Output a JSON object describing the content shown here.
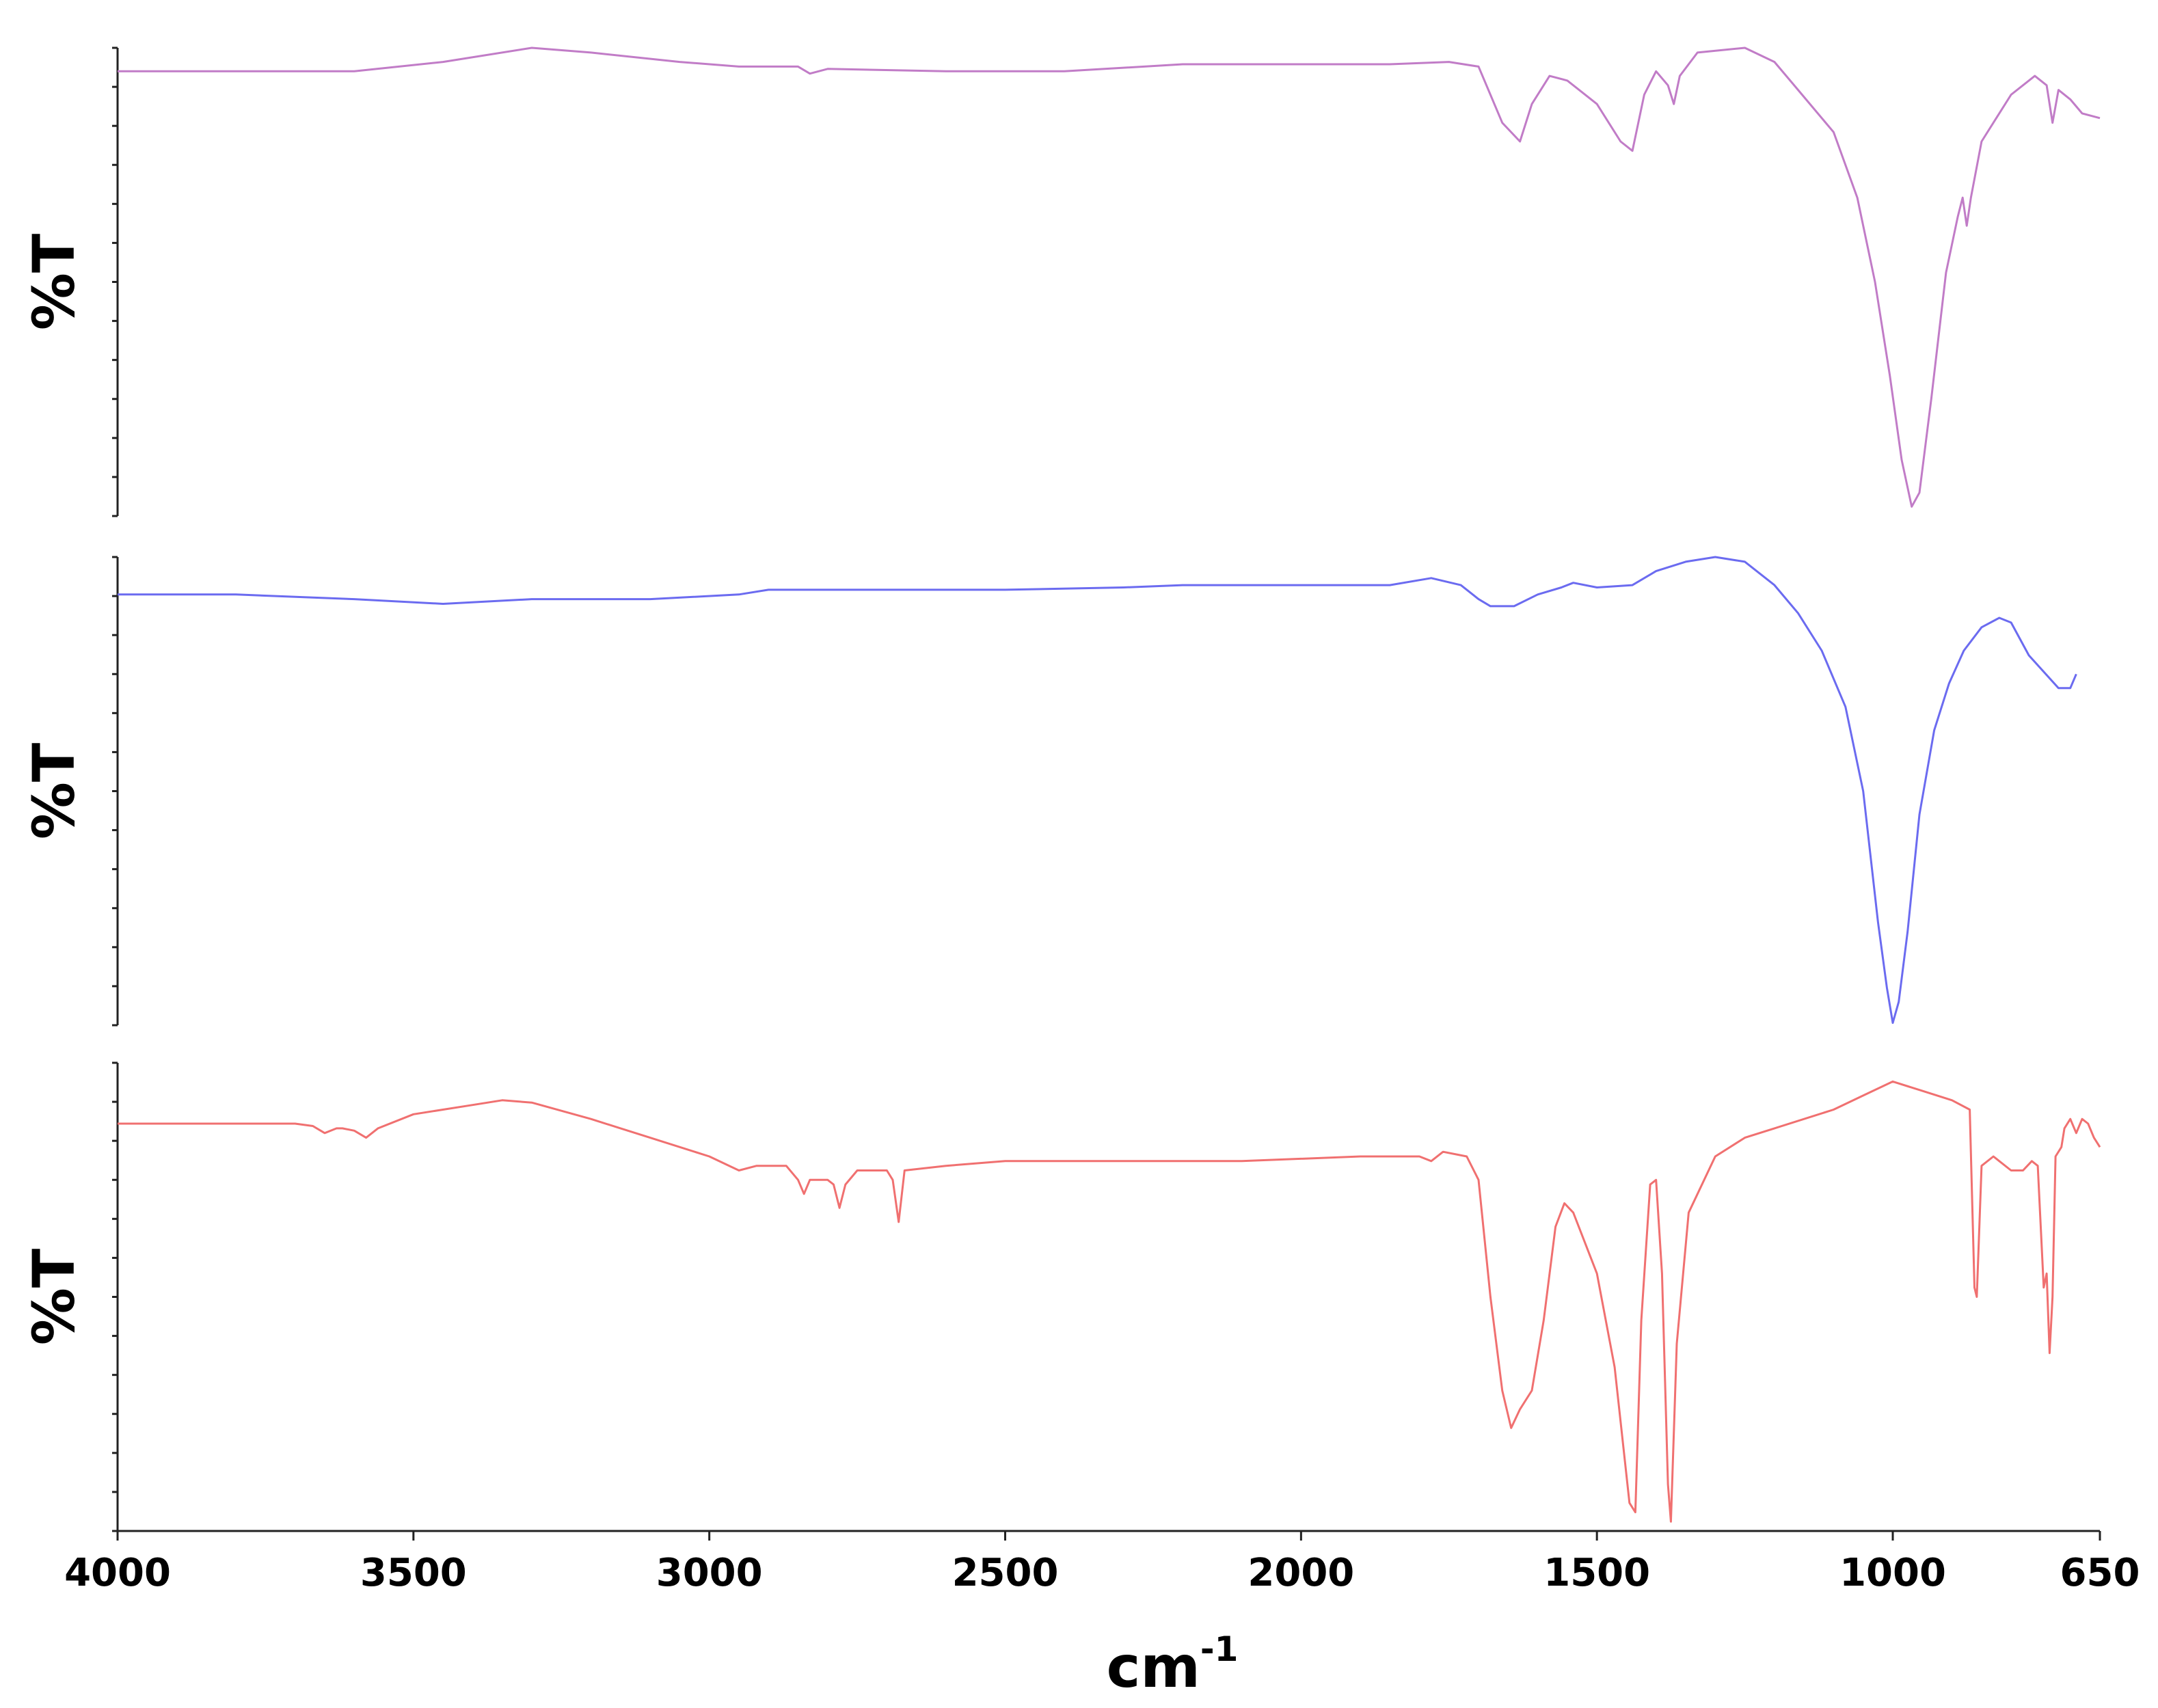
{
  "chart_data": {
    "type": "line",
    "stacked_panels": 3,
    "xlabel": "cm",
    "xlabel_sup": "-1",
    "ylabel": "%T",
    "xlim": [
      4000,
      650
    ],
    "x_reversed": true,
    "xticks": [
      "4000",
      "3500",
      "3000",
      "2500",
      "2000",
      "1500",
      "1000",
      "650"
    ],
    "grid": false,
    "series": [
      {
        "color": "#c17cc7",
        "ylim": [
          0,
          100
        ],
        "points": [
          [
            4000,
            95
          ],
          [
            3800,
            95
          ],
          [
            3600,
            95
          ],
          [
            3450,
            97
          ],
          [
            3300,
            100
          ],
          [
            3200,
            99
          ],
          [
            3050,
            97
          ],
          [
            2950,
            96
          ],
          [
            2850,
            96
          ],
          [
            2830,
            94.5
          ],
          [
            2800,
            95.5
          ],
          [
            2600,
            95
          ],
          [
            2400,
            95
          ],
          [
            2200,
            96.5
          ],
          [
            2000,
            96.5
          ],
          [
            1850,
            96.5
          ],
          [
            1750,
            97
          ],
          [
            1700,
            96
          ],
          [
            1660,
            84
          ],
          [
            1630,
            80
          ],
          [
            1610,
            88
          ],
          [
            1580,
            94
          ],
          [
            1550,
            93
          ],
          [
            1500,
            88
          ],
          [
            1460,
            80
          ],
          [
            1440,
            78
          ],
          [
            1420,
            90
          ],
          [
            1400,
            95
          ],
          [
            1380,
            92
          ],
          [
            1370,
            88
          ],
          [
            1360,
            94
          ],
          [
            1330,
            99
          ],
          [
            1250,
            100
          ],
          [
            1200,
            97
          ],
          [
            1160,
            91
          ],
          [
            1100,
            82
          ],
          [
            1060,
            68
          ],
          [
            1030,
            50
          ],
          [
            1005,
            30
          ],
          [
            985,
            12
          ],
          [
            968,
            2
          ],
          [
            955,
            5
          ],
          [
            935,
            25
          ],
          [
            910,
            52
          ],
          [
            890,
            64
          ],
          [
            882,
            68
          ],
          [
            875,
            62
          ],
          [
            868,
            68
          ],
          [
            850,
            80
          ],
          [
            800,
            90
          ],
          [
            760,
            94
          ],
          [
            740,
            92
          ],
          [
            730,
            84
          ],
          [
            720,
            91
          ],
          [
            700,
            89
          ],
          [
            680,
            86
          ],
          [
            650,
            85
          ]
        ]
      },
      {
        "color": "#6b6bf0",
        "ylim": [
          0,
          100
        ],
        "points": [
          [
            4000,
            92
          ],
          [
            3800,
            92
          ],
          [
            3600,
            91
          ],
          [
            3450,
            90
          ],
          [
            3300,
            91
          ],
          [
            3100,
            91
          ],
          [
            2950,
            92
          ],
          [
            2900,
            93
          ],
          [
            2700,
            93
          ],
          [
            2500,
            93
          ],
          [
            2300,
            93.5
          ],
          [
            2200,
            94
          ],
          [
            2000,
            94
          ],
          [
            1850,
            94
          ],
          [
            1780,
            95.5
          ],
          [
            1730,
            94
          ],
          [
            1700,
            91
          ],
          [
            1680,
            89.5
          ],
          [
            1640,
            89.5
          ],
          [
            1600,
            92
          ],
          [
            1560,
            93.5
          ],
          [
            1540,
            94.5
          ],
          [
            1500,
            93.5
          ],
          [
            1440,
            94
          ],
          [
            1400,
            97
          ],
          [
            1350,
            99
          ],
          [
            1300,
            100
          ],
          [
            1250,
            99
          ],
          [
            1200,
            94
          ],
          [
            1160,
            88
          ],
          [
            1120,
            80
          ],
          [
            1080,
            68
          ],
          [
            1050,
            50
          ],
          [
            1025,
            22
          ],
          [
            1010,
            8
          ],
          [
            1000,
            0.5
          ],
          [
            990,
            5
          ],
          [
            975,
            20
          ],
          [
            955,
            45
          ],
          [
            930,
            63
          ],
          [
            905,
            73
          ],
          [
            880,
            80
          ],
          [
            850,
            85
          ],
          [
            820,
            87
          ],
          [
            800,
            86
          ],
          [
            770,
            79
          ],
          [
            720,
            72
          ],
          [
            700,
            72
          ],
          [
            690,
            75
          ]
        ]
      },
      {
        "color": "#f07070",
        "ylim": [
          0,
          100
        ],
        "points": [
          [
            4000,
            87
          ],
          [
            3800,
            87
          ],
          [
            3700,
            87
          ],
          [
            3670,
            86.5
          ],
          [
            3650,
            85
          ],
          [
            3630,
            86
          ],
          [
            3620,
            86
          ],
          [
            3600,
            85.5
          ],
          [
            3580,
            84
          ],
          [
            3560,
            86
          ],
          [
            3500,
            89
          ],
          [
            3400,
            91
          ],
          [
            3350,
            92
          ],
          [
            3300,
            91.5
          ],
          [
            3200,
            88
          ],
          [
            3100,
            84
          ],
          [
            3000,
            80
          ],
          [
            2950,
            77
          ],
          [
            2920,
            78
          ],
          [
            2870,
            78
          ],
          [
            2850,
            75
          ],
          [
            2840,
            72
          ],
          [
            2830,
            75
          ],
          [
            2800,
            75
          ],
          [
            2790,
            74
          ],
          [
            2780,
            69
          ],
          [
            2770,
            74
          ],
          [
            2750,
            77
          ],
          [
            2700,
            77
          ],
          [
            2690,
            75
          ],
          [
            2680,
            66
          ],
          [
            2670,
            77
          ],
          [
            2600,
            78
          ],
          [
            2500,
            79
          ],
          [
            2300,
            79
          ],
          [
            2100,
            79
          ],
          [
            1900,
            80
          ],
          [
            1800,
            80
          ],
          [
            1780,
            79
          ],
          [
            1760,
            81
          ],
          [
            1720,
            80
          ],
          [
            1700,
            75
          ],
          [
            1680,
            50
          ],
          [
            1660,
            30
          ],
          [
            1645,
            22
          ],
          [
            1630,
            26
          ],
          [
            1610,
            30
          ],
          [
            1590,
            45
          ],
          [
            1570,
            65
          ],
          [
            1555,
            70
          ],
          [
            1540,
            68
          ],
          [
            1500,
            55
          ],
          [
            1470,
            35
          ],
          [
            1445,
            6
          ],
          [
            1435,
            4
          ],
          [
            1425,
            45
          ],
          [
            1410,
            74
          ],
          [
            1400,
            75
          ],
          [
            1390,
            55
          ],
          [
            1380,
            10
          ],
          [
            1375,
            2
          ],
          [
            1365,
            40
          ],
          [
            1345,
            68
          ],
          [
            1300,
            80
          ],
          [
            1250,
            84
          ],
          [
            1200,
            86
          ],
          [
            1100,
            90
          ],
          [
            1050,
            93
          ],
          [
            1000,
            96
          ],
          [
            950,
            94
          ],
          [
            900,
            92
          ],
          [
            870,
            90
          ],
          [
            862,
            52
          ],
          [
            858,
            50
          ],
          [
            850,
            78
          ],
          [
            830,
            80
          ],
          [
            800,
            77
          ],
          [
            780,
            77
          ],
          [
            765,
            79
          ],
          [
            755,
            78
          ],
          [
            745,
            52
          ],
          [
            740,
            55
          ],
          [
            735,
            38
          ],
          [
            730,
            50
          ],
          [
            725,
            80
          ],
          [
            715,
            82
          ],
          [
            710,
            86
          ],
          [
            700,
            88
          ],
          [
            690,
            85
          ],
          [
            680,
            88
          ],
          [
            670,
            87
          ],
          [
            660,
            84
          ],
          [
            650,
            82
          ]
        ]
      }
    ]
  }
}
